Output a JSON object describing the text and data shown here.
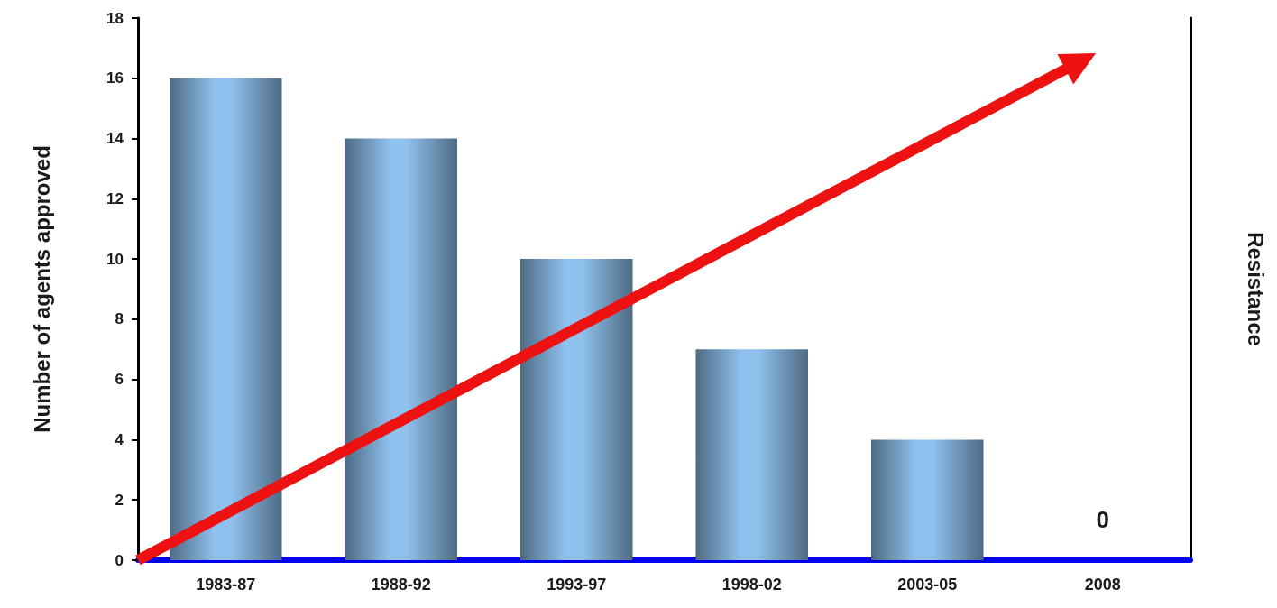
{
  "chart_data": {
    "type": "bar",
    "categories": [
      "1983-87",
      "1988-92",
      "1993-97",
      "1998-02",
      "2003-05",
      "2008"
    ],
    "values": [
      16,
      14,
      10,
      7,
      4,
      0
    ],
    "value_labels": [
      null,
      null,
      null,
      null,
      null,
      "0"
    ],
    "color": "#8fc1ee",
    "ylabel": "Number of agents approved",
    "y2label": "Resistance",
    "ylim": [
      0,
      18
    ],
    "yticks": [
      0,
      2,
      4,
      6,
      8,
      10,
      12,
      14,
      16,
      18
    ],
    "grid": false
  }
}
